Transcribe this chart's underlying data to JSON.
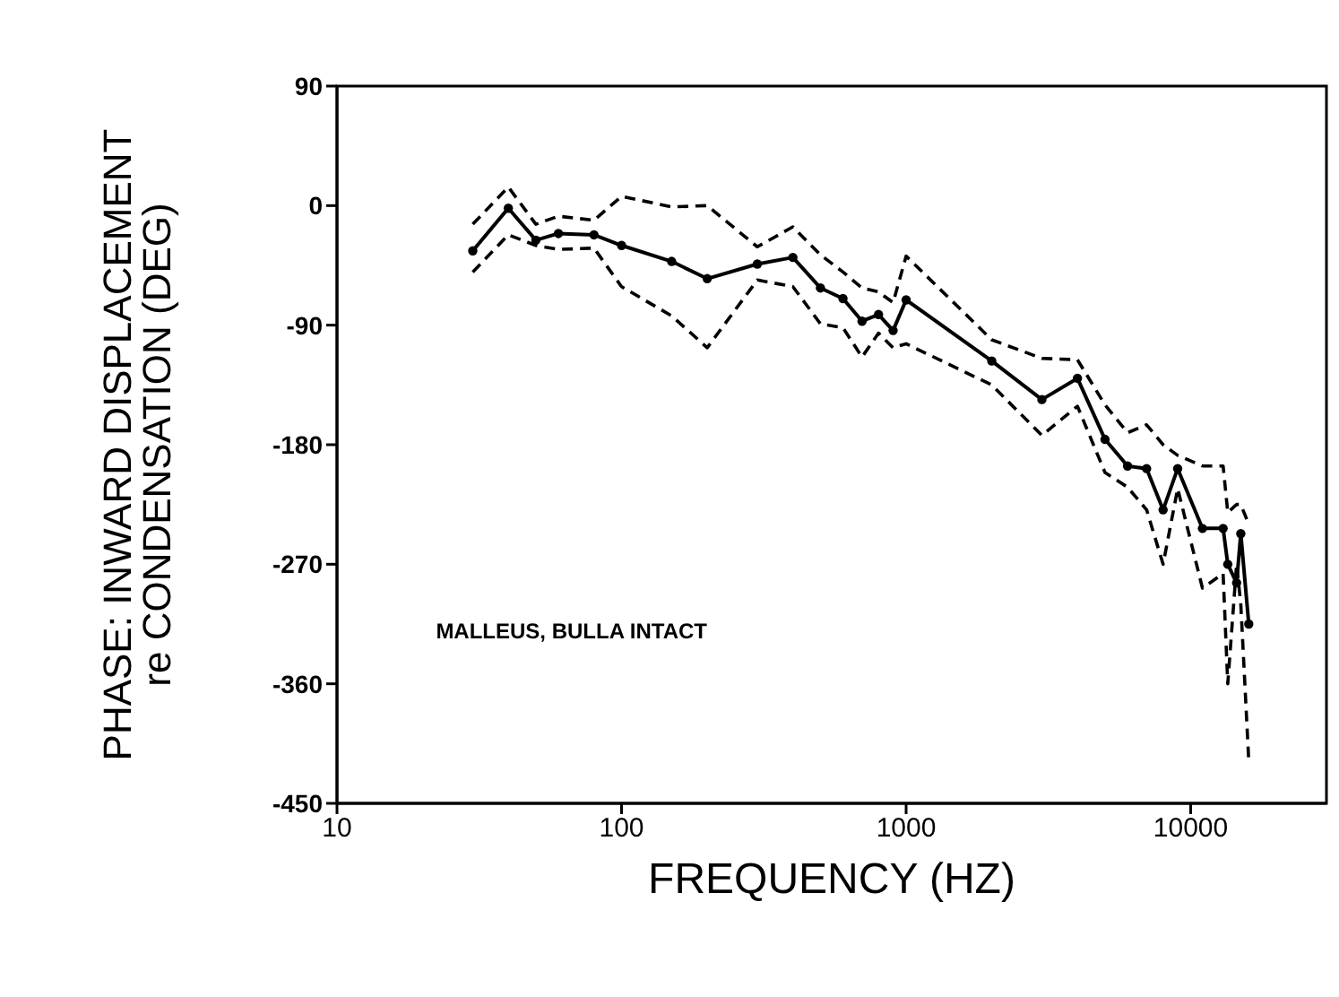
{
  "chart_data": {
    "type": "line",
    "xlabel": "FREQUENCY  (HZ)",
    "ylabel": "PHASE:  INWARD  DISPLACEMENT\nre  CONDENSATION  (DEG)",
    "log": "x",
    "xlim": [
      10,
      30000
    ],
    "xticks": [
      10,
      100,
      1000,
      10000
    ],
    "ylim": [
      -450,
      90
    ],
    "yticks": [
      90,
      0,
      -90,
      -180,
      -270,
      -360,
      -450
    ],
    "x": [
      30,
      40,
      50,
      60,
      80,
      100,
      150,
      200,
      300,
      400,
      500,
      600,
      700,
      800,
      900,
      1000,
      2000,
      3000,
      4000,
      5000,
      6000,
      7000,
      8000,
      9000,
      11000,
      13000,
      13500,
      14500,
      15000,
      16000
    ],
    "annotations": [
      "MALLEUS, BULLA INTACT"
    ],
    "series": [
      {
        "color": "#000000",
        "marker": "circle",
        "line_style": "solid",
        "values": [
          -34,
          -2,
          -26,
          -21,
          -22,
          -30,
          -42,
          -55,
          -44,
          -39,
          -62,
          -70,
          -87,
          -82,
          -94,
          -71,
          -117,
          -146,
          -130,
          -176,
          -196,
          -198,
          -229,
          -198,
          -243,
          -243,
          -270,
          -284,
          -247,
          -315
        ]
      },
      {
        "color": "#000000",
        "marker": "none",
        "line_style": "dashed",
        "values": [
          -14,
          14,
          -14,
          -8,
          -11,
          7,
          -1,
          0,
          -31,
          -16,
          -37,
          -50,
          -62,
          -65,
          -73,
          -38,
          -101,
          -115,
          -116,
          -150,
          -171,
          -165,
          -180,
          -188,
          -196,
          -196,
          -231,
          -225,
          -225,
          -240
        ]
      },
      {
        "color": "#000000",
        "marker": "none",
        "line_style": "dashed",
        "values": [
          -50,
          -22,
          -30,
          -33,
          -32,
          -61,
          -83,
          -107,
          -56,
          -61,
          -89,
          -92,
          -114,
          -96,
          -107,
          -104,
          -135,
          -173,
          -151,
          -201,
          -212,
          -229,
          -270,
          -213,
          -288,
          -277,
          -360,
          -270,
          -300,
          -418
        ]
      }
    ]
  }
}
